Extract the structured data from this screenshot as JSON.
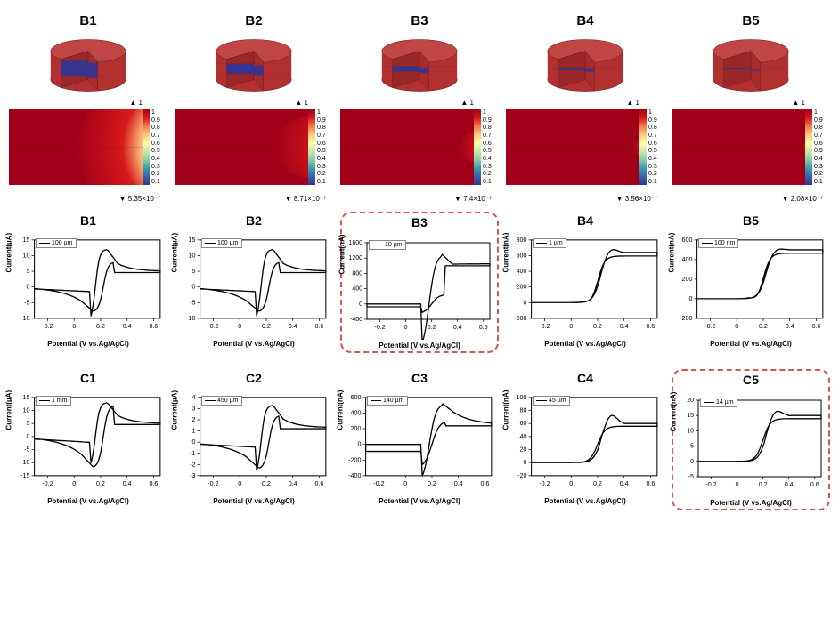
{
  "row1_titles": [
    "B1",
    "B2",
    "B3",
    "B4",
    "B5"
  ],
  "cylinders": [
    {
      "slot_rel_height": 0.55
    },
    {
      "slot_rel_height": 0.35
    },
    {
      "slot_rel_height": 0.18
    },
    {
      "slot_rel_height": 0.09
    },
    {
      "slot_rel_height": 0.04
    }
  ],
  "heatmaps": [
    {
      "min_label": "5.35×10⁻⁷",
      "spot_rx": 0.5,
      "spot_ry": 0.8
    },
    {
      "min_label": "8.71×10⁻⁷",
      "spot_rx": 0.25,
      "spot_ry": 0.4
    },
    {
      "min_label": "7.4×10⁻⁷",
      "spot_rx": 0.12,
      "spot_ry": 0.2
    },
    {
      "min_label": "3.56×10⁻⁷",
      "spot_rx": 0.06,
      "spot_ry": 0.1
    },
    {
      "min_label": "2.08×10⁻⁷",
      "spot_rx": 0.03,
      "spot_ry": 0.05
    }
  ],
  "heatmap_max_label": "1",
  "colorbar_ticks": [
    "1",
    "0.9",
    "0.8",
    "0.7",
    "0.6",
    "0.5",
    "0.4",
    "0.3",
    "0.2",
    "0.1"
  ],
  "colorbar_stops": [
    "#a00018",
    "#d7191c",
    "#f07c49",
    "#fdc980",
    "#ffffa4",
    "#c7e9ad",
    "#84cfa4",
    "#3b9ab2",
    "#3a62a8",
    "#313695"
  ],
  "cv_rowB": {
    "titles": [
      "B1",
      "B2",
      "B3",
      "B4",
      "B5"
    ],
    "highlighted_index": 2,
    "panels": [
      {
        "y_unit": "µA",
        "legend": "100 µm",
        "ylim": [
          -10,
          15
        ],
        "yticks": [
          -10,
          -5,
          0,
          5,
          10,
          15
        ],
        "shape": "duck",
        "fwd_peak": 12,
        "rev_peak": -8,
        "plateau": 5
      },
      {
        "y_unit": "µA",
        "legend": "100 µm",
        "ylim": [
          -10,
          15
        ],
        "yticks": [
          -10,
          -5,
          0,
          5,
          10,
          15
        ],
        "shape": "duck",
        "fwd_peak": 12,
        "rev_peak": -8,
        "plateau": 5
      },
      {
        "y_unit": "nA",
        "legend": "10 µm",
        "ylim": [
          -400,
          1600
        ],
        "yticks": [
          -400,
          0,
          400,
          800,
          1200,
          1600
        ],
        "shape": "mixed",
        "fwd_peak": 1300,
        "rev_peak": -250,
        "plateau": 1050
      },
      {
        "y_unit": "nA",
        "legend": "1 µm",
        "ylim": [
          -200,
          800
        ],
        "yticks": [
          -200,
          0,
          200,
          400,
          600,
          800
        ],
        "shape": "sigmoid",
        "fwd_peak": 700,
        "rev_peak": -50,
        "plateau": 640
      },
      {
        "y_unit": "nA",
        "legend": "100 nm",
        "ylim": [
          -200,
          600
        ],
        "yticks": [
          -200,
          0,
          200,
          400,
          600
        ],
        "shape": "sigmoid",
        "fwd_peak": 520,
        "rev_peak": -50,
        "plateau": 500
      }
    ]
  },
  "cv_rowC": {
    "titles": [
      "C1",
      "C2",
      "C3",
      "C4",
      "C5"
    ],
    "highlighted_index": 4,
    "panels": [
      {
        "y_unit": "µA",
        "legend": "1 mm",
        "ylim": [
          -15,
          15
        ],
        "yticks": [
          -15,
          -10,
          -5,
          0,
          5,
          10,
          15
        ],
        "shape": "duck",
        "fwd_peak": 13,
        "rev_peak": -12,
        "plateau": 5
      },
      {
        "y_unit": "µA",
        "legend": "450 µm",
        "ylim": [
          -3,
          4
        ],
        "yticks": [
          -3,
          -2,
          -1,
          0,
          1,
          2,
          3,
          4
        ],
        "shape": "duck",
        "fwd_peak": 3.3,
        "rev_peak": -2.4,
        "plateau": 1.3
      },
      {
        "y_unit": "nA",
        "legend": "140 µm",
        "ylim": [
          -400,
          600
        ],
        "yticks": [
          -400,
          -200,
          0,
          200,
          400,
          600
        ],
        "shape": "mixed",
        "fwd_peak": 520,
        "rev_peak": -300,
        "plateau": 250
      },
      {
        "y_unit": "nA",
        "legend": "45 µm",
        "ylim": [
          -20,
          100
        ],
        "yticks": [
          -20,
          0,
          20,
          40,
          60,
          80,
          100
        ],
        "shape": "sigmoid",
        "fwd_peak": 75,
        "rev_peak": 0,
        "plateau": 60
      },
      {
        "y_unit": "nA",
        "legend": "14 µm",
        "ylim": [
          -5,
          20
        ],
        "yticks": [
          -5,
          0,
          5,
          10,
          15,
          20
        ],
        "shape": "sigmoid",
        "fwd_peak": 17,
        "rev_peak": 0,
        "plateau": 15
      }
    ]
  },
  "xlim": [
    -0.3,
    0.65
  ],
  "xticks": [
    -0.2,
    0,
    0.2,
    0.4,
    0.6
  ],
  "xlabel": "Potential (V vs.Ag/AgCl)",
  "cyl_body_color": "#b23030",
  "axis_color": "#000",
  "line_width": 1.3
}
